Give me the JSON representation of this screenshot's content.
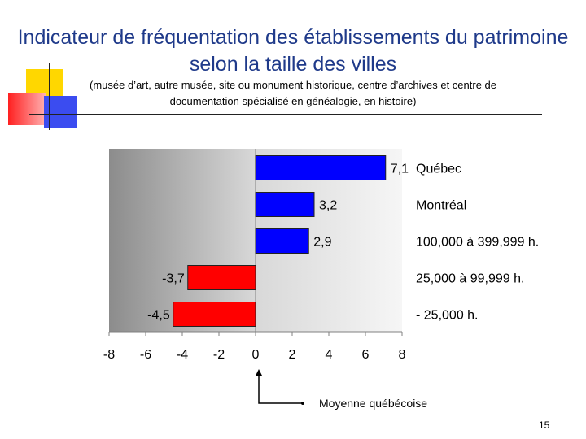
{
  "slide": {
    "title": "Indicateur de fréquentation des établissements du patrimoine selon la taille des villes",
    "subtitle": "(musée d’art, autre musée, site ou monument historique, centre d’archives et centre de documentation spécialisé en généalogie, en histoire)",
    "footnote": "Moyenne québécoise",
    "page_number": "15"
  },
  "colors": {
    "title": "#1f3a8a",
    "positive_bar": "#0000ff",
    "negative_bar": "#ff0000",
    "deco_yellow": "#ffd700",
    "deco_red": "#ff3b3b",
    "deco_blue": "#3b4cf0"
  },
  "chart_data": {
    "type": "bar",
    "orientation": "horizontal",
    "categories": [
      "Québec",
      "Montréal",
      "100,000 à 399,999 h.",
      "25,000 à 99,999 h.",
      "- 25,000 h."
    ],
    "values": [
      7.1,
      3.2,
      2.9,
      -3.7,
      -4.5
    ],
    "value_labels": [
      "7,1",
      "3,2",
      "2,9",
      "-3,7",
      "-4,5"
    ],
    "xlim": [
      -8,
      8
    ],
    "xticks": [
      "-8",
      "-6",
      "-4",
      "-2",
      "0",
      "2",
      "4",
      "6",
      "8"
    ],
    "title": "",
    "xlabel": "",
    "ylabel": "",
    "grid": false
  }
}
